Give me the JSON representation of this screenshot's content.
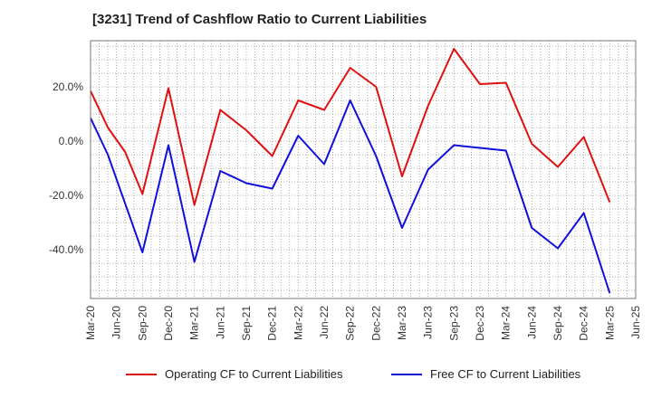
{
  "colors": {
    "operating": "#e01010",
    "free": "#1010dd",
    "grid": "#999999",
    "frame": "#777777"
  },
  "chart_data": {
    "type": "line",
    "title": "[3231]  Trend of Cashflow Ratio to Current Liabilities",
    "categories": [
      "Mar-20",
      "Jun-20",
      "Sep-20",
      "Dec-20",
      "Mar-21",
      "Jun-21",
      "Sep-21",
      "Dec-21",
      "Mar-22",
      "Jun-22",
      "Sep-22",
      "Dec-22",
      "Mar-23",
      "Jun-23",
      "Sep-23",
      "Dec-23",
      "Mar-24",
      "Jun-24",
      "Sep-24",
      "Dec-24",
      "Mar-25",
      "Jun-25"
    ],
    "tick_labels_y": [
      "20.0%",
      "0.0%",
      "-20.0%",
      "-40.0%"
    ],
    "tick_values_y": [
      20,
      0,
      -20,
      -40
    ],
    "ylim": [
      -58,
      37
    ],
    "series": [
      {
        "name": "Operating CF to Current Liabilities",
        "color": "#e01010",
        "x": [
          "Mar-20",
          "May-20",
          "Jul-20",
          "Sep-20",
          "Dec-20",
          "Mar-21",
          "Jun-21",
          "Sep-21",
          "Dec-21",
          "Mar-22",
          "Jun-22",
          "Sep-22",
          "Dec-22",
          "Mar-23",
          "Jun-23",
          "Sep-23",
          "Dec-23",
          "Mar-24",
          "Jun-24",
          "Sep-24",
          "Dec-24",
          "Mar-25"
        ],
        "values": [
          18.5,
          5.0,
          -4.0,
          -19.5,
          19.5,
          -23.5,
          11.5,
          4.0,
          -5.5,
          15.0,
          11.5,
          27.0,
          20.0,
          -13.0,
          13.0,
          34.0,
          21.0,
          21.5,
          -1.0,
          -9.5,
          1.5,
          -22.5
        ]
      },
      {
        "name": "Free CF to Current Liabilities",
        "color": "#1010dd",
        "x": [
          "Mar-20",
          "May-20",
          "Sep-20",
          "Dec-20",
          "Mar-21",
          "Jun-21",
          "Sep-21",
          "Dec-21",
          "Mar-22",
          "Jun-22",
          "Sep-22",
          "Dec-22",
          "Mar-23",
          "Jun-23",
          "Sep-23",
          "Dec-23",
          "Mar-24",
          "Jun-24",
          "Sep-24",
          "Dec-24",
          "Mar-25"
        ],
        "values": [
          8.5,
          -5.0,
          -41.0,
          -1.5,
          -44.5,
          -11.0,
          -15.5,
          -17.5,
          2.0,
          -8.5,
          15.0,
          -5.5,
          -32.0,
          -10.5,
          -1.5,
          -2.5,
          -3.5,
          -32.0,
          -39.5,
          -26.5,
          -56.0
        ]
      }
    ],
    "grid": true,
    "legend_position": "bottom"
  }
}
